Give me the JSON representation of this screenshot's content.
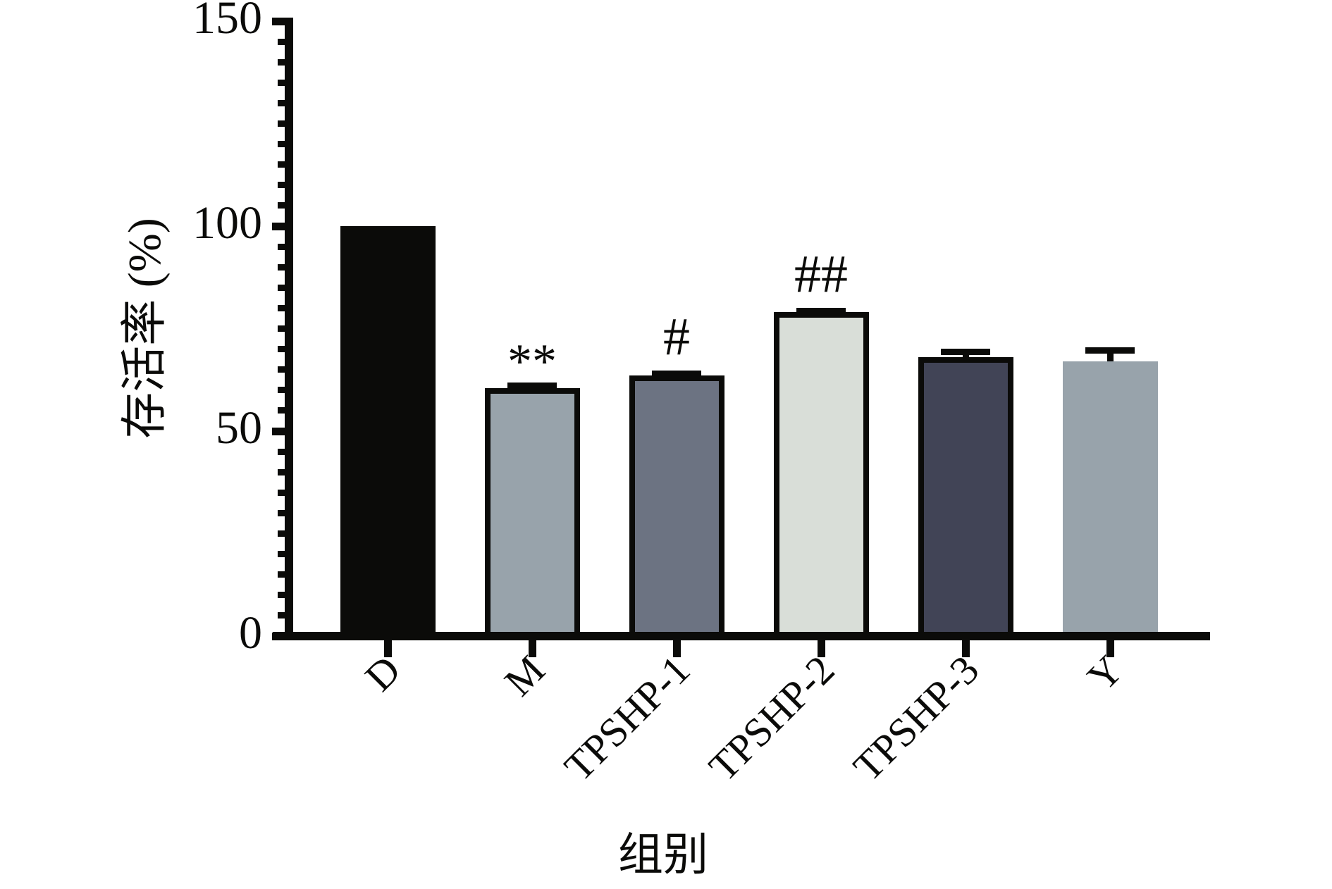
{
  "chart_data": {
    "type": "bar",
    "title": "",
    "xlabel": "组别",
    "ylabel": "存活率 (%)",
    "ylim": [
      0,
      150
    ],
    "yticks": [
      0,
      50,
      100,
      150
    ],
    "y_minor_tick_step": 5,
    "grid": false,
    "legend": null,
    "categories": [
      "D",
      "M",
      "TPSHP-1",
      "TPSHP-2",
      "TPSHP-3",
      "Y"
    ],
    "values": [
      100,
      60.5,
      63.5,
      79,
      68,
      67
    ],
    "errors_plus": [
      0,
      1.4,
      1.2,
      1.0,
      2.1,
      3.4
    ],
    "significance_labels": [
      "",
      "**",
      "#",
      "##",
      "",
      ""
    ],
    "bar_fill_colors": [
      "#0b0b09",
      "#98a3ab",
      "#6c7382",
      "#d9ded8",
      "#414456",
      "#98a3ab"
    ],
    "bar_border_colors": [
      "#0b0b09",
      "#0b0b09",
      "#0b0b09",
      "#0b0b09",
      "#0b0b09",
      null
    ],
    "axis_color": "#0b0b09",
    "background_color": "#ffffff"
  }
}
